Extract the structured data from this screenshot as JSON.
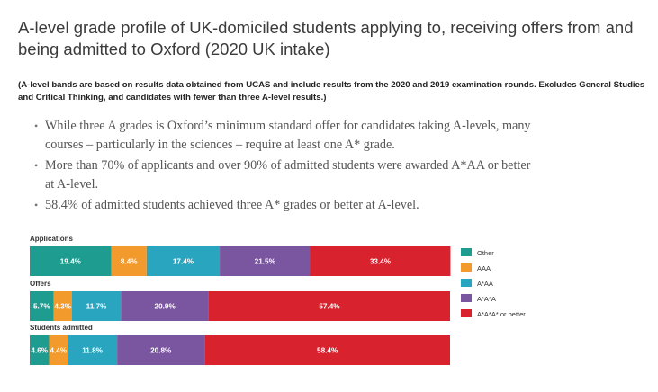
{
  "title": "A-level grade profile of UK-domiciled students applying to, receiving offers from and being admitted to Oxford (2020 UK intake)",
  "note": "(A-level bands are based on results data obtained from UCAS and include results from the 2020 and 2019 examination rounds. Excludes General Studies and Critical Thinking, and candidates with fewer than three A-level results.)",
  "bullets": [
    "While three A grades is Oxford’s minimum standard offer for candidates taking A-levels, many courses – particularly in the sciences – require at least one A* grade.",
    "More than 70% of applicants and over 90% of admitted students were awarded A*AA or better at A-level.",
    "58.4% of admitted students achieved three A* grades or better at A-level."
  ],
  "chart_data": {
    "type": "bar",
    "orientation": "horizontal",
    "stacked": true,
    "categories": [
      "Applications",
      "Offers",
      "Students admitted"
    ],
    "xlim": [
      0,
      100
    ],
    "series": [
      {
        "name": "Other",
        "color": "#1e9c8f",
        "values": [
          19.4,
          5.7,
          4.6
        ],
        "labels": [
          "19.4%",
          "5.7%",
          "4.6%"
        ]
      },
      {
        "name": "AAA",
        "color": "#f39a2c",
        "values": [
          8.4,
          4.3,
          4.4
        ],
        "labels": [
          "8.4%",
          "4.3%",
          "4.4%"
        ]
      },
      {
        "name": "A*AA",
        "color": "#2aa5c0",
        "values": [
          17.4,
          11.7,
          11.8
        ],
        "labels": [
          "17.4%",
          "11.7%",
          "11.8%"
        ]
      },
      {
        "name": "A*A*A",
        "color": "#7b56a0",
        "values": [
          21.5,
          20.9,
          20.8
        ],
        "labels": [
          "21.5%",
          "20.9%",
          "20.8%"
        ]
      },
      {
        "name": "A*A*A* or better",
        "color": "#d8232f",
        "values": [
          33.4,
          57.4,
          58.4
        ],
        "labels": [
          "33.4%",
          "57.4%",
          "58.4%"
        ]
      }
    ],
    "legend_position": "right"
  }
}
